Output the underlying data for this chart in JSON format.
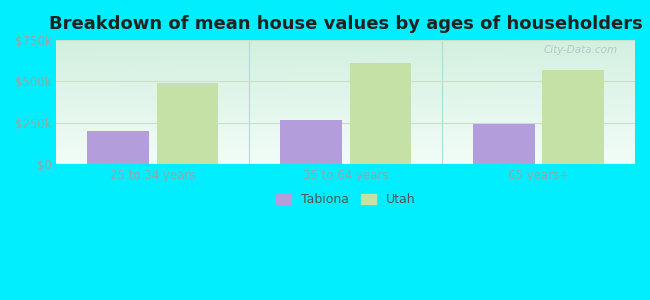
{
  "title": "Breakdown of mean house values by ages of householders",
  "categories": [
    "25 to 34 years",
    "35 to 64 years",
    "65 years+"
  ],
  "tabiona_values": [
    200000,
    270000,
    245000
  ],
  "utah_values": [
    490000,
    610000,
    570000
  ],
  "ylim": [
    0,
    750000
  ],
  "yticks": [
    0,
    250000,
    500000,
    750000
  ],
  "ytick_labels": [
    "$0",
    "$250k",
    "$500k",
    "$750k"
  ],
  "tabiona_color": "#b39ddb",
  "utah_color": "#c5e1a5",
  "background_color": "#00eeff",
  "bar_width": 0.32,
  "legend_labels": [
    "Tabiona",
    "Utah"
  ],
  "watermark": "City-Data.com",
  "title_fontsize": 13,
  "tick_fontsize": 8.5,
  "legend_fontsize": 9,
  "tick_color": "#88aaaa",
  "divider_color": "#aadddd",
  "grid_color": "#ccddcc"
}
